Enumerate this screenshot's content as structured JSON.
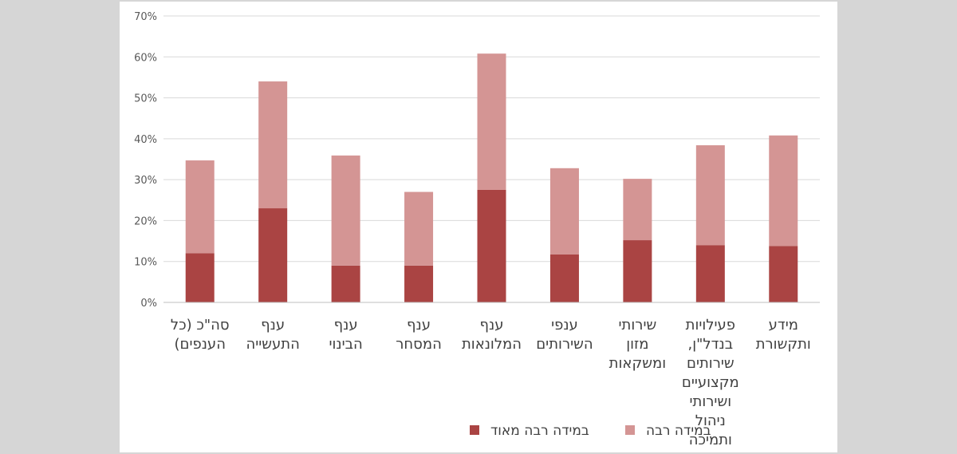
{
  "chart_data": {
    "type": "bar",
    "stacked": true,
    "direction": "rtl",
    "categories": [
      [
        "סה\"כ (כל",
        "הענפים)"
      ],
      [
        "ענף",
        "התעשייה"
      ],
      [
        "ענף",
        "הבינוי"
      ],
      [
        "ענף",
        "המסחר"
      ],
      [
        "ענף",
        "המלונאות"
      ],
      [
        "ענפי",
        "השירותים"
      ],
      [
        "שירותי",
        "מזון",
        "ומשקאות"
      ],
      [
        "פעילויות",
        "בנדל\"ן,",
        "שירותים",
        "מקצועיים",
        "ושירותי",
        "ניהול",
        "ותמיכה"
      ],
      [
        "מידע",
        "ותקשורת"
      ]
    ],
    "series": [
      {
        "name": "במידה רבה מאוד",
        "color": "#aa4443",
        "values": [
          12,
          23,
          9,
          9,
          27.5,
          11.7,
          15.2,
          14,
          13.8
        ]
      },
      {
        "name": "במידה רבה",
        "color": "#d49594",
        "values": [
          22.7,
          31,
          26.9,
          18,
          33.3,
          21.1,
          15,
          24.4,
          27
        ]
      }
    ],
    "ylim": [
      0,
      70
    ],
    "yticks": [
      "0%",
      "10%",
      "20%",
      "30%",
      "40%",
      "50%",
      "60%",
      "70%"
    ],
    "grid": true,
    "legend": "bottom"
  }
}
